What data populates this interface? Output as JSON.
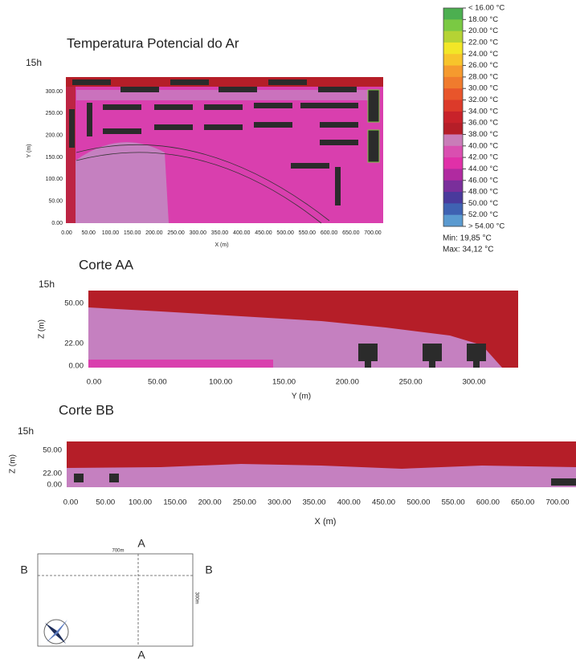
{
  "map": {
    "title": "Temperatura Potencial do Ar",
    "time": "15h",
    "y_label": "Y (m)",
    "x_label": "X (m)",
    "yticks": [
      "0.00",
      "50.00",
      "100.00",
      "150.00",
      "200.00",
      "250.00",
      "300.00"
    ],
    "xticks": [
      "0.00",
      "50.00",
      "100.00",
      "150.00",
      "200.00",
      "250.00",
      "300.00",
      "350.00",
      "400.00",
      "450.00",
      "500.00",
      "550.00",
      "600.00",
      "650.00",
      "700.00"
    ]
  },
  "legend": {
    "items": [
      "< 16.00 °C",
      "18.00 °C",
      "20.00 °C",
      "22.00 °C",
      "24.00 °C",
      "26.00 °C",
      "28.00 °C",
      "30.00 °C",
      "32.00 °C",
      "34.00 °C",
      "36.00 °C",
      "38.00 °C",
      "40.00 °C",
      "42.00 °C",
      "44.00 °C",
      "46.00 °C",
      "48.00 °C",
      "50.00 °C",
      "52.00 °C",
      "> 54.00 °C"
    ],
    "colors": [
      "#4caf50",
      "#7ac943",
      "#b5d334",
      "#f2e627",
      "#f7c42b",
      "#f59a2e",
      "#f07b2d",
      "#e8552b",
      "#dc3a2a",
      "#c8222a",
      "#b51e28",
      "#c97cb8",
      "#d94fb0",
      "#e030a8",
      "#b02aa0",
      "#7a2f9b",
      "#4a3a9c",
      "#3f62b2",
      "#5a9ad0"
    ],
    "min": "Min: 19,85 °C",
    "max": "Max: 34,12 °C"
  },
  "section_aa": {
    "title": "Corte AA",
    "time": "15h",
    "y_label": "Z (m)",
    "x_label": "Y (m)",
    "yticks": [
      "0.00",
      "22.00",
      "50.00"
    ],
    "xticks": [
      "0.00",
      "50.00",
      "100.00",
      "150.00",
      "200.00",
      "250.00",
      "300.00"
    ]
  },
  "section_bb": {
    "title": "Corte BB",
    "time": "15h",
    "y_label": "Z (m)",
    "x_label": "X (m)",
    "yticks": [
      "0.00",
      "22.00",
      "50.00"
    ],
    "xticks": [
      "0.00",
      "50.00",
      "100.00",
      "150.00",
      "200.00",
      "250.00",
      "300.00",
      "350.00",
      "400.00",
      "450.00",
      "500.00",
      "550.00",
      "600.00",
      "650.00",
      "700.00"
    ]
  },
  "plan": {
    "width_label": "700m",
    "height_label": "300m",
    "a_top": "A",
    "a_bottom": "A",
    "b_left": "B",
    "b_right": "B"
  }
}
